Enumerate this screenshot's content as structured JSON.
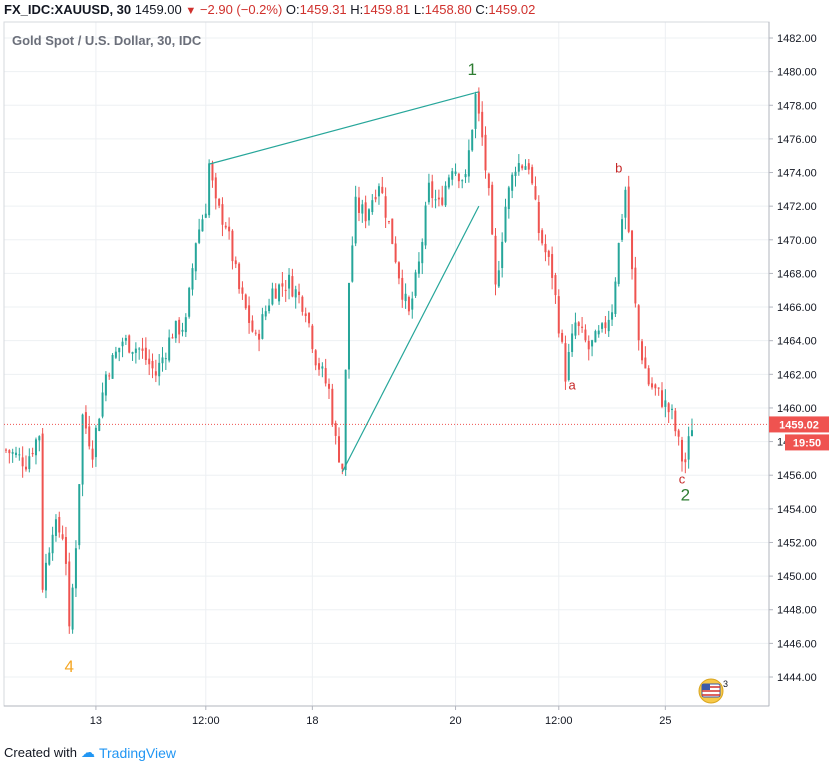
{
  "header": {
    "symbol": "FX_IDC:XAUUSD, 30",
    "last": "1459.00",
    "change": "−2.90 (−0.2%)",
    "o_label": "O:",
    "o_value": "1459.31",
    "h_label": "H:",
    "h_value": "1459.81",
    "l_label": "L:",
    "l_value": "1458.80",
    "c_label": "C:",
    "c_value": "1459.02"
  },
  "footer": {
    "created_with": "Created with",
    "brand": "TradingView"
  },
  "colors": {
    "up": "#26a69a",
    "down": "#ef5350",
    "wave_green": "#2e7d32",
    "wave_red": "#c62828",
    "wave_orange": "#f5a623",
    "trendline": "#26a69a",
    "price_tag": "#ef5350"
  },
  "chart_data": {
    "type": "candlestick",
    "title": "Gold Spot / U.S. Dollar, 30, IDC",
    "ylim": [
      1442,
      1484
    ],
    "y_ticks": [
      "1482.00",
      "1480.00",
      "1478.00",
      "1476.00",
      "1474.00",
      "1472.00",
      "1470.00",
      "1468.00",
      "1466.00",
      "1464.00",
      "1462.00",
      "1460.00",
      "1458.00",
      "1456.00",
      "1454.00",
      "1452.00",
      "1450.00",
      "1448.00",
      "1446.00",
      "1444.00"
    ],
    "x_ticks": [
      "13",
      "12:00",
      "18",
      "20",
      "12:00",
      "25"
    ],
    "x_tick_index": [
      27,
      60,
      92,
      135,
      166,
      198
    ],
    "current_price": "1459.02",
    "countdown": "19:50",
    "gridlines": true,
    "anchors": [
      [
        0,
        1457.5
      ],
      [
        6,
        1456.8
      ],
      [
        10,
        1458.5
      ],
      [
        11,
        1449.5
      ],
      [
        14,
        1453
      ],
      [
        17,
        1452.5
      ],
      [
        18,
        1451
      ],
      [
        19,
        1446.5
      ],
      [
        21,
        1452
      ],
      [
        23,
        1459.5
      ],
      [
        26,
        1457.5
      ],
      [
        30,
        1462
      ],
      [
        35,
        1464
      ],
      [
        40,
        1463.5
      ],
      [
        45,
        1462
      ],
      [
        50,
        1464.5
      ],
      [
        54,
        1465
      ],
      [
        57,
        1470
      ],
      [
        60,
        1472
      ],
      [
        61,
        1474.5
      ],
      [
        63,
        1472
      ],
      [
        66,
        1471
      ],
      [
        70,
        1467
      ],
      [
        75,
        1464
      ],
      [
        80,
        1467
      ],
      [
        85,
        1467.5
      ],
      [
        90,
        1466
      ],
      [
        93,
        1463
      ],
      [
        97,
        1461
      ],
      [
        99,
        1458
      ],
      [
        101,
        1456.5
      ],
      [
        103,
        1467.5
      ],
      [
        105,
        1472
      ],
      [
        108,
        1471.5
      ],
      [
        112,
        1473.5
      ],
      [
        116,
        1470
      ],
      [
        119,
        1467
      ],
      [
        121,
        1465.5
      ],
      [
        124,
        1468.5
      ],
      [
        127,
        1473
      ],
      [
        130,
        1472
      ],
      [
        134,
        1474.5
      ],
      [
        138,
        1473.5
      ],
      [
        141,
        1478.5
      ],
      [
        143,
        1476
      ],
      [
        145,
        1472.5
      ],
      [
        147,
        1467
      ],
      [
        150,
        1472
      ],
      [
        153,
        1474.5
      ],
      [
        157,
        1474.5
      ],
      [
        160,
        1470.5
      ],
      [
        164,
        1468
      ],
      [
        168,
        1462
      ],
      [
        171,
        1465
      ],
      [
        175,
        1463.5
      ],
      [
        179,
        1464.5
      ],
      [
        182,
        1466
      ],
      [
        185,
        1471.5
      ],
      [
        186,
        1473
      ],
      [
        188,
        1468
      ],
      [
        190,
        1464
      ],
      [
        193,
        1461.5
      ],
      [
        197,
        1460.5
      ],
      [
        200,
        1459.5
      ],
      [
        203,
        1457
      ],
      [
        204,
        1456.8
      ],
      [
        206,
        1459
      ]
    ],
    "annotations": [
      {
        "text": "1",
        "index": 140,
        "price": 1479.8,
        "color": "green",
        "size": "big"
      },
      {
        "text": "2",
        "index": 204,
        "price": 1454.5,
        "color": "green",
        "size": "big"
      },
      {
        "text": "4",
        "index": 19,
        "price": 1444.3,
        "color": "orange",
        "size": "big"
      },
      {
        "text": "a",
        "index": 170,
        "price": 1461.1,
        "color": "red",
        "size": "small"
      },
      {
        "text": "b",
        "index": 184,
        "price": 1474.0,
        "color": "red",
        "size": "small"
      },
      {
        "text": "c",
        "index": 203,
        "price": 1455.5,
        "color": "red",
        "size": "small"
      }
    ],
    "trendlines": [
      {
        "from": [
          61,
          1474.5
        ],
        "to": [
          142,
          1478.8
        ]
      },
      {
        "from": [
          101,
          1456.2
        ],
        "to": [
          142,
          1472.0
        ]
      }
    ]
  }
}
